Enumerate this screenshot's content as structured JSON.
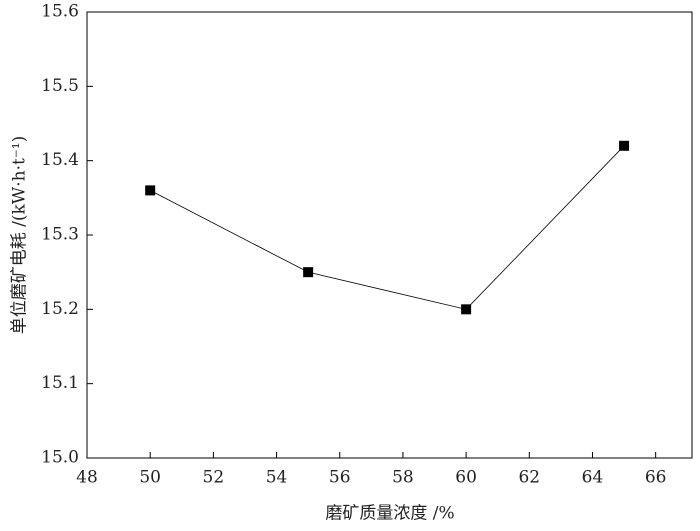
{
  "chart_data": {
    "type": "line",
    "x_label": "磨矿质量浓度 /%",
    "y_label": "单位磨矿电耗 /(kW·h·t⁻¹)",
    "series": [
      {
        "name": null,
        "color": "#000000",
        "x": [
          50,
          55,
          60,
          65
        ],
        "values": [
          15.36,
          15.25,
          15.2,
          15.42
        ]
      }
    ],
    "xlim": [
      48,
      67.15
    ],
    "xticks": [
      48,
      50,
      52,
      54,
      56,
      58,
      60,
      62,
      64,
      66
    ],
    "ylim": [
      15.0,
      15.6
    ],
    "yticks": [
      {
        "value": 15.0,
        "label": "15.0"
      },
      15.1,
      15.2,
      15.3,
      15.4,
      15.5,
      15.6
    ],
    "grid": false
  }
}
